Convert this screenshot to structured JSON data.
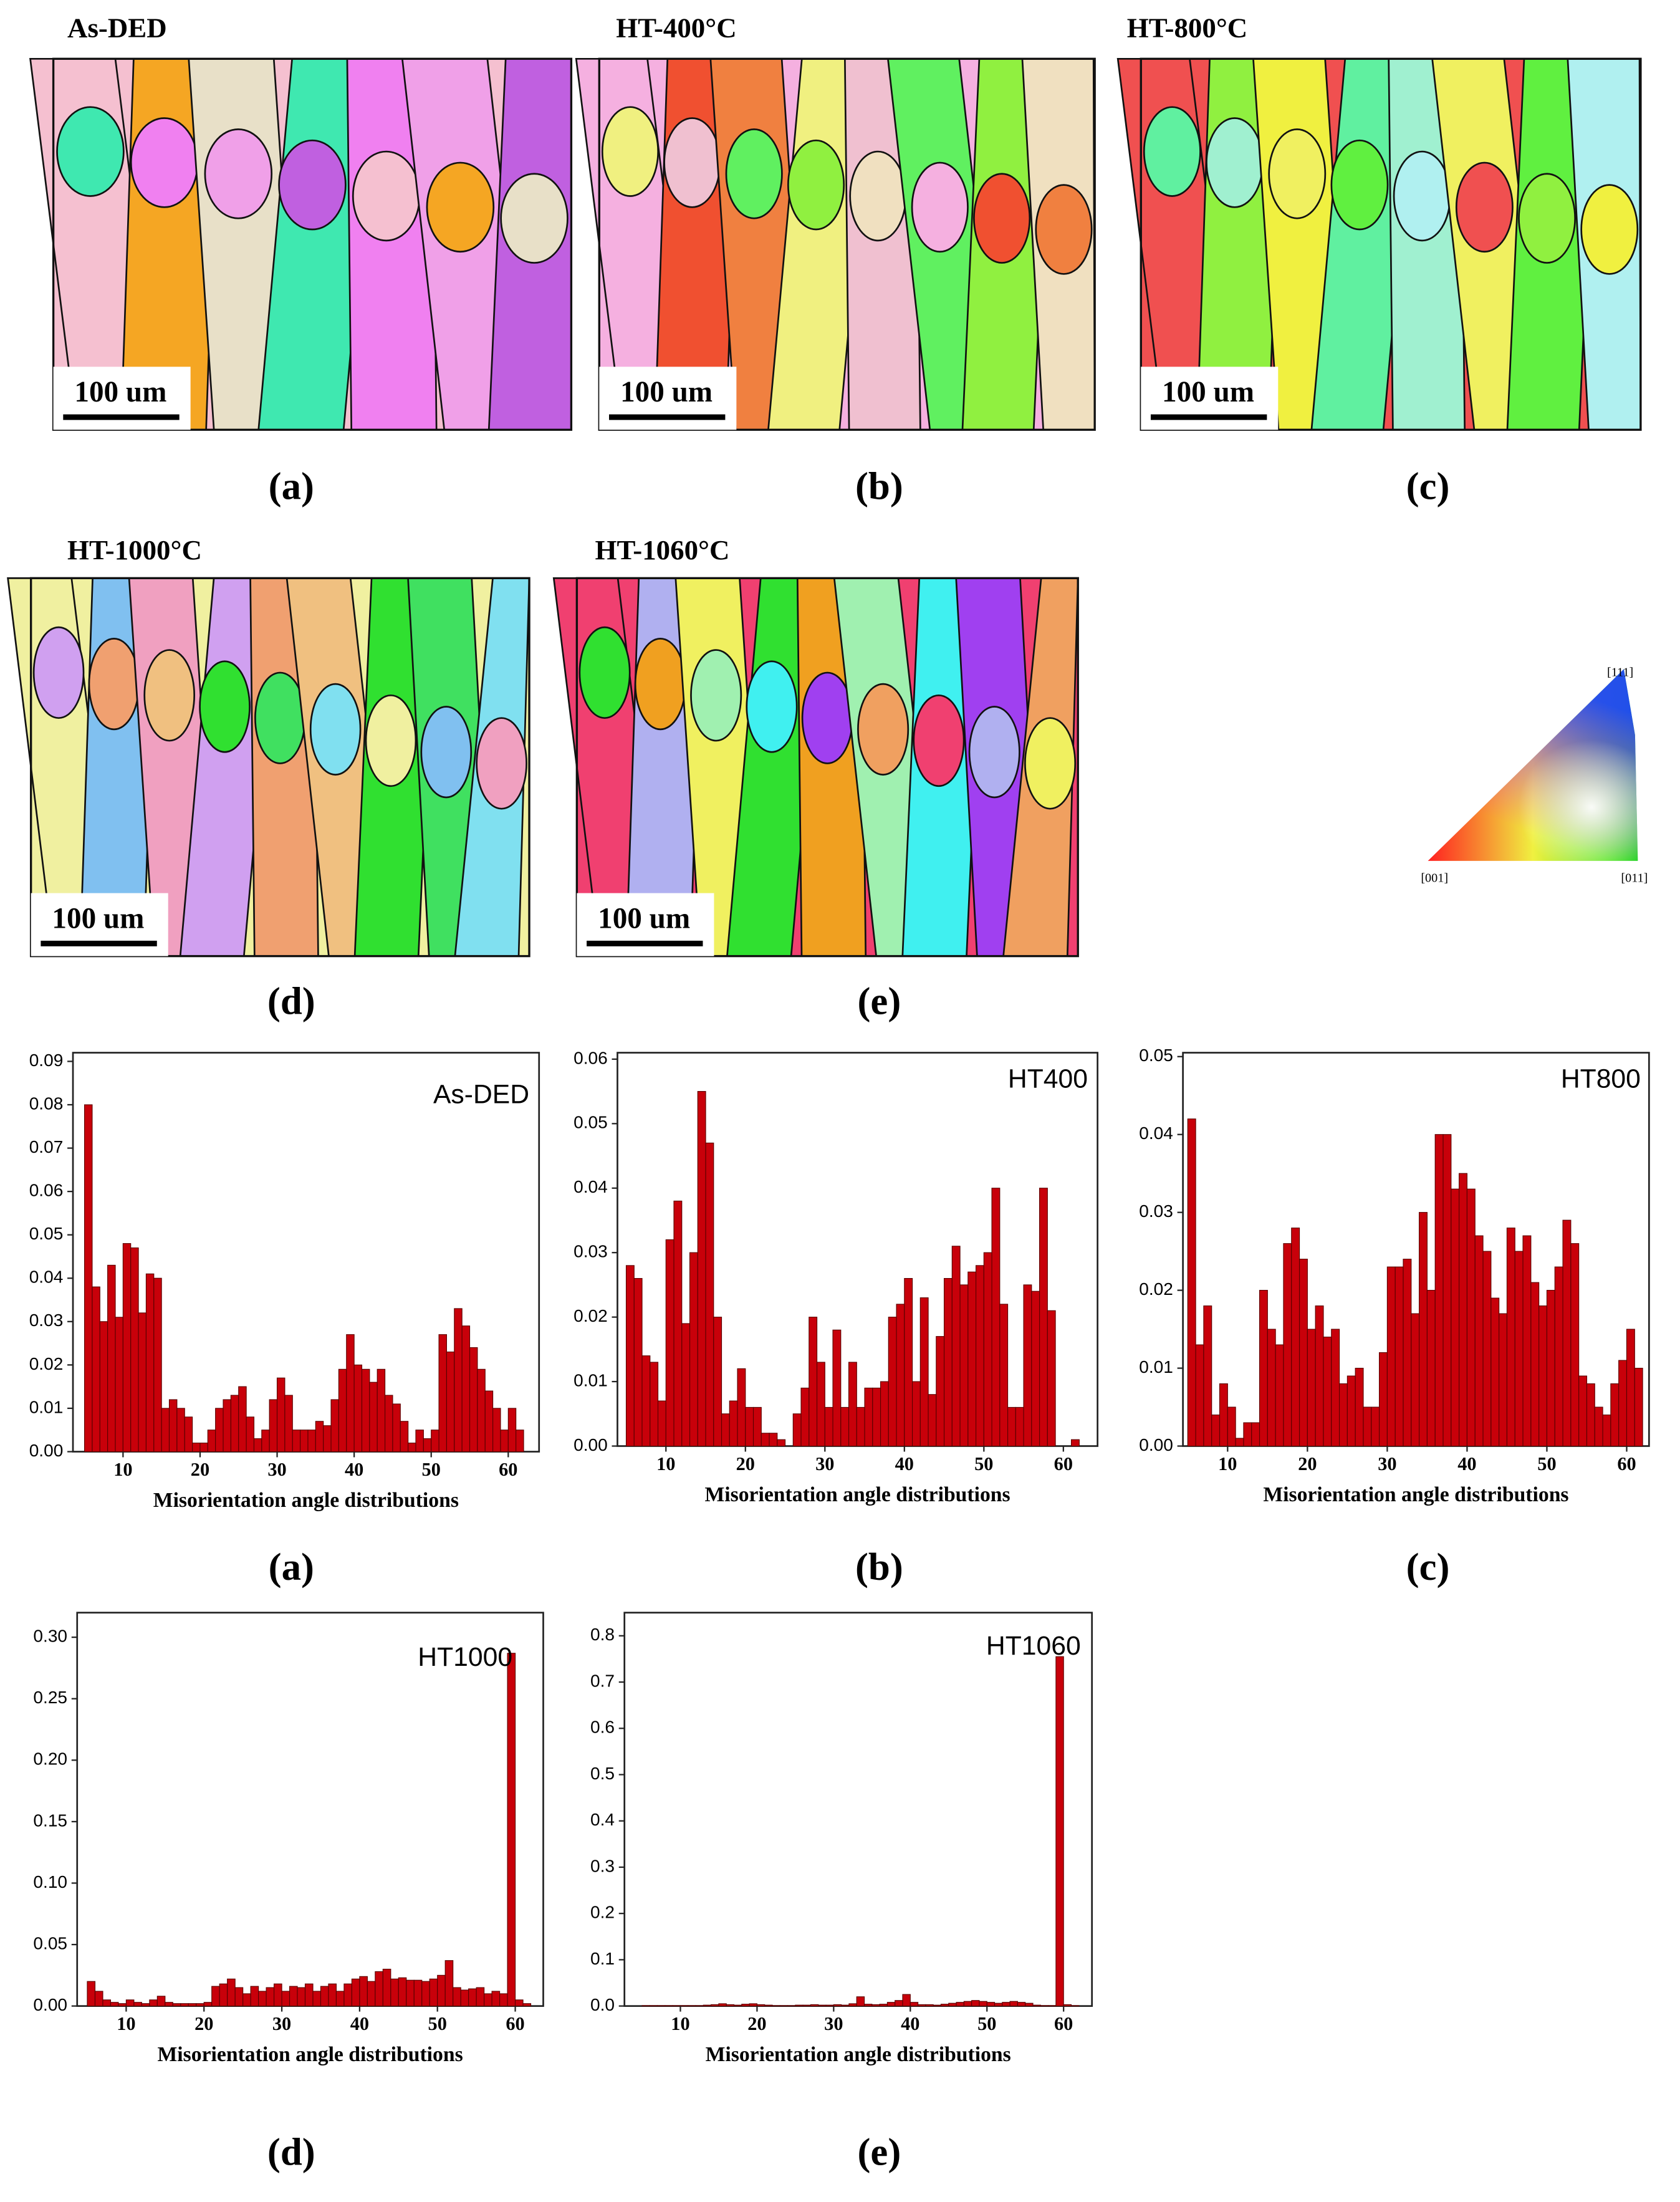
{
  "maps": [
    {
      "title": "As-DED",
      "scale_bar": "100 um",
      "label": "(a)"
    },
    {
      "title": "HT-400°C",
      "scale_bar": "100 um",
      "label": "(b)"
    },
    {
      "title": "HT-800°C",
      "scale_bar": "100 um",
      "label": "(c)"
    },
    {
      "title": "HT-1000°C",
      "scale_bar": "100 um",
      "label": "(d)"
    },
    {
      "title": "HT-1060°C",
      "scale_bar": "100 um",
      "label": "(e)"
    }
  ],
  "ipf": {
    "labels": [
      "[111]",
      "[001]",
      "[011]"
    ]
  },
  "chart_data": [
    {
      "type": "histogram",
      "panel_label": "(a)",
      "xlabel": "Misorientation angle distributions",
      "bins": [
        5,
        6,
        7,
        8,
        9,
        10,
        11,
        12,
        13,
        14,
        15,
        16,
        17,
        18,
        19,
        20,
        21,
        22,
        23,
        24,
        25,
        26,
        27,
        28,
        29,
        30,
        31,
        32,
        33,
        34,
        35,
        36,
        37,
        38,
        39,
        40,
        41,
        42,
        43,
        44,
        45,
        46,
        47,
        48,
        49,
        50,
        51,
        52,
        53,
        54,
        55,
        56,
        57,
        58,
        59,
        60,
        61,
        62
      ],
      "series": [
        {
          "name": "As-DED",
          "color": "#c8000a",
          "values": [
            0.08,
            0.038,
            0.03,
            0.043,
            0.031,
            0.048,
            0.047,
            0.032,
            0.041,
            0.04,
            0.01,
            0.012,
            0.01,
            0.008,
            0.002,
            0.002,
            0.005,
            0.01,
            0.012,
            0.013,
            0.015,
            0.008,
            0.003,
            0.005,
            0.012,
            0.017,
            0.013,
            0.005,
            0.005,
            0.005,
            0.007,
            0.006,
            0.012,
            0.019,
            0.027,
            0.02,
            0.019,
            0.016,
            0.019,
            0.013,
            0.011,
            0.007,
            0.002,
            0.005,
            0.003,
            0.005,
            0.027,
            0.023,
            0.033,
            0.029,
            0.024,
            0.019,
            0.014,
            0.01,
            0.005,
            0.01,
            0.005
          ]
        }
      ],
      "xlim": [
        3.5,
        64
      ],
      "ylim": [
        0,
        0.092
      ],
      "xticks": [
        10,
        20,
        30,
        40,
        50,
        60
      ],
      "yticks": [
        {
          "value": 0,
          "label": "0.00"
        },
        0.01,
        0.02,
        0.03,
        0.04,
        0.05,
        0.06,
        0.07,
        0.08,
        0.09
      ]
    },
    {
      "type": "histogram",
      "panel_label": "(b)",
      "xlabel": "Misorientation angle distributions",
      "bins": [
        5,
        6,
        7,
        8,
        9,
        10,
        11,
        12,
        13,
        14,
        15,
        16,
        17,
        18,
        19,
        20,
        21,
        22,
        23,
        24,
        25,
        26,
        27,
        28,
        29,
        30,
        31,
        32,
        33,
        34,
        35,
        36,
        37,
        38,
        39,
        40,
        41,
        42,
        43,
        44,
        45,
        46,
        47,
        48,
        49,
        50,
        51,
        52,
        53,
        54,
        55,
        56,
        57,
        58,
        59,
        60,
        61,
        62
      ],
      "series": [
        {
          "name": "HT400",
          "color": "#c8000a",
          "values": [
            0.028,
            0.026,
            0.014,
            0.013,
            0.007,
            0.032,
            0.038,
            0.019,
            0.03,
            0.055,
            0.047,
            0.02,
            0.005,
            0.007,
            0.012,
            0.006,
            0.006,
            0.002,
            0.002,
            0.001,
            0,
            0.005,
            0.009,
            0.02,
            0.013,
            0.006,
            0.018,
            0.006,
            0.013,
            0.006,
            0.009,
            0.009,
            0.01,
            0.02,
            0.022,
            0.026,
            0.01,
            0.023,
            0.008,
            0.017,
            0.026,
            0.031,
            0.025,
            0.027,
            0.028,
            0.03,
            0.04,
            0.022,
            0.006,
            0.006,
            0.025,
            0.024,
            0.04,
            0.021,
            0,
            0,
            0.001
          ]
        }
      ],
      "xlim": [
        3.9,
        64.3
      ],
      "ylim": [
        0,
        0.061
      ],
      "xticks": [
        10,
        20,
        30,
        40,
        50,
        60
      ],
      "yticks": [
        {
          "value": 0,
          "label": "0.00"
        },
        0.01,
        0.02,
        0.03,
        0.04,
        0.05,
        0.06
      ]
    },
    {
      "type": "histogram",
      "panel_label": "(c)",
      "xlabel": "Misorientation angle distributions",
      "bins": [
        5,
        6,
        7,
        8,
        9,
        10,
        11,
        12,
        13,
        14,
        15,
        16,
        17,
        18,
        19,
        20,
        21,
        22,
        23,
        24,
        25,
        26,
        27,
        28,
        29,
        30,
        31,
        32,
        33,
        34,
        35,
        36,
        37,
        38,
        39,
        40,
        41,
        42,
        43,
        44,
        45,
        46,
        47,
        48,
        49,
        50,
        51,
        52,
        53,
        54,
        55,
        56,
        57,
        58,
        59,
        60,
        61,
        62
      ],
      "series": [
        {
          "name": "HT800",
          "color": "#c8000a",
          "values": [
            0.042,
            0.013,
            0.018,
            0.004,
            0.008,
            0.005,
            0.001,
            0.003,
            0.003,
            0.02,
            0.015,
            0.013,
            0.026,
            0.028,
            0.024,
            0.015,
            0.018,
            0.014,
            0.015,
            0.008,
            0.009,
            0.01,
            0.005,
            0.005,
            0.012,
            0.023,
            0.023,
            0.024,
            0.017,
            0.03,
            0.02,
            0.04,
            0.04,
            0.033,
            0.035,
            0.033,
            0.027,
            0.025,
            0.019,
            0.017,
            0.028,
            0.025,
            0.027,
            0.021,
            0.018,
            0.02,
            0.023,
            0.029,
            0.026,
            0.009,
            0.008,
            0.005,
            0.004,
            0.008,
            0.011,
            0.015,
            0.01
          ]
        }
      ],
      "xlim": [
        4.4,
        62.8
      ],
      "ylim": [
        0,
        0.0505
      ],
      "xticks": [
        10,
        20,
        30,
        40,
        50,
        60
      ],
      "yticks": [
        {
          "value": 0,
          "label": "0.00"
        },
        0.01,
        0.02,
        0.03,
        0.04,
        0.05
      ]
    },
    {
      "type": "histogram",
      "panel_label": "(d)",
      "xlabel": "Misorientation angle distributions",
      "bins": [
        5,
        6,
        7,
        8,
        9,
        10,
        11,
        12,
        13,
        14,
        15,
        16,
        17,
        18,
        19,
        20,
        21,
        22,
        23,
        24,
        25,
        26,
        27,
        28,
        29,
        30,
        31,
        32,
        33,
        34,
        35,
        36,
        37,
        38,
        39,
        40,
        41,
        42,
        43,
        44,
        45,
        46,
        47,
        48,
        49,
        50,
        51,
        52,
        53,
        54,
        55,
        56,
        57,
        58,
        59,
        60,
        61,
        62
      ],
      "series": [
        {
          "name": "HT1000",
          "color": "#c8000a",
          "values": [
            0.02,
            0.012,
            0.005,
            0.003,
            0.002,
            0.005,
            0.003,
            0.002,
            0.005,
            0.008,
            0.003,
            0.002,
            0.002,
            0.002,
            0.002,
            0.003,
            0.016,
            0.018,
            0.022,
            0.015,
            0.01,
            0.016,
            0.012,
            0.015,
            0.018,
            0.012,
            0.016,
            0.015,
            0.018,
            0.012,
            0.016,
            0.018,
            0.012,
            0.018,
            0.022,
            0.024,
            0.02,
            0.028,
            0.03,
            0.022,
            0.023,
            0.021,
            0.021,
            0.02,
            0.022,
            0.025,
            0.037,
            0.015,
            0.013,
            0.014,
            0.015,
            0.01,
            0.012,
            0.01,
            0.287,
            0.005,
            0.002
          ]
        }
      ],
      "xlim": [
        3.7,
        63.6
      ],
      "ylim": [
        0,
        0.32
      ],
      "xticks": [
        10,
        20,
        30,
        40,
        50,
        60
      ],
      "yticks": [
        {
          "value": 0,
          "label": "0.00"
        },
        0.05,
        {
          "value": 0.1,
          "label": "0.10"
        },
        0.15,
        {
          "value": 0.2,
          "label": "0.20"
        },
        0.25,
        {
          "value": 0.3,
          "label": "0.30"
        }
      ]
    },
    {
      "type": "histogram",
      "panel_label": "(e)",
      "xlabel": "Misorientation angle distributions",
      "bins": [
        5,
        6,
        7,
        8,
        9,
        10,
        11,
        12,
        13,
        14,
        15,
        16,
        17,
        18,
        19,
        20,
        21,
        22,
        23,
        24,
        25,
        26,
        27,
        28,
        29,
        30,
        31,
        32,
        33,
        34,
        35,
        36,
        37,
        38,
        39,
        40,
        41,
        42,
        43,
        44,
        45,
        46,
        47,
        48,
        49,
        50,
        51,
        52,
        53,
        54,
        55,
        56,
        57,
        58,
        59,
        60,
        61,
        62
      ],
      "series": [
        {
          "name": "HT1060",
          "color": "#c8000a",
          "values": [
            0.001,
            0.001,
            0.001,
            0.001,
            0.001,
            0.001,
            0.001,
            0.001,
            0.002,
            0.003,
            0.005,
            0.003,
            0.002,
            0.004,
            0.005,
            0.003,
            0.002,
            0.001,
            0.001,
            0.001,
            0.002,
            0.002,
            0.003,
            0.002,
            0.002,
            0.003,
            0.002,
            0.005,
            0.02,
            0.004,
            0.003,
            0.004,
            0.008,
            0.012,
            0.025,
            0.008,
            0.003,
            0.003,
            0.002,
            0.004,
            0.006,
            0.008,
            0.01,
            0.012,
            0.01,
            0.008,
            0.006,
            0.008,
            0.01,
            0.008,
            0.006,
            0.002,
            0.001,
            0.001,
            0.755,
            0.003,
            0.001
          ]
        }
      ],
      "xlim": [
        2.7,
        63.7
      ],
      "ylim": [
        0,
        0.85
      ],
      "xticks": [
        10,
        20,
        30,
        40,
        50,
        60
      ],
      "yticks": [
        {
          "value": 0,
          "label": "0.0"
        },
        0.1,
        0.2,
        0.3,
        0.4,
        0.5,
        0.6,
        0.7,
        0.8
      ]
    }
  ]
}
